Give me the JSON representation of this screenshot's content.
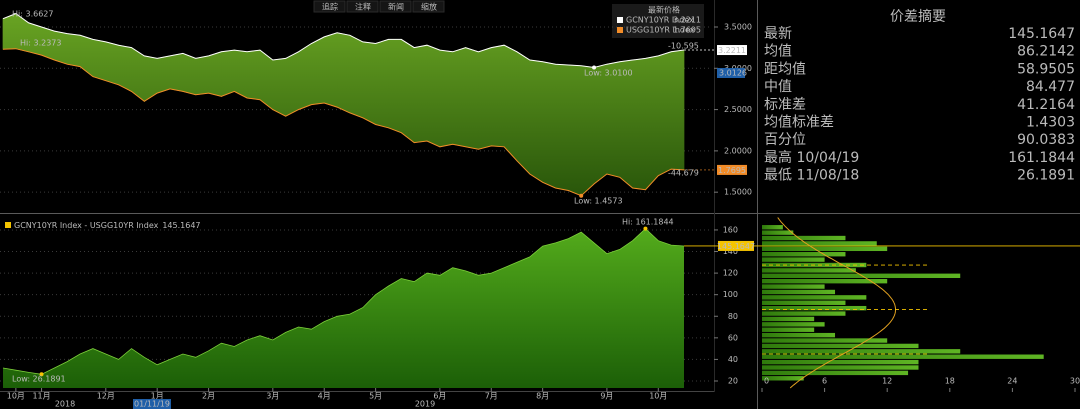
{
  "toolbar": [
    "追踪",
    "注释",
    "新闻",
    "缩放"
  ],
  "chart_data": [
    {
      "type": "band",
      "legend_title": "最新价格",
      "series": [
        {
          "name": "GCNY10YR Index",
          "color": "#ffffff",
          "values": [
            3.6,
            3.6627,
            3.55,
            3.5,
            3.45,
            3.42,
            3.4,
            3.35,
            3.32,
            3.28,
            3.25,
            3.15,
            3.12,
            3.15,
            3.18,
            3.12,
            3.15,
            3.2,
            3.22,
            3.2,
            3.22,
            3.1,
            3.12,
            3.2,
            3.3,
            3.38,
            3.43,
            3.4,
            3.32,
            3.3,
            3.35,
            3.35,
            3.25,
            3.28,
            3.22,
            3.2,
            3.25,
            3.2,
            3.25,
            3.28,
            3.2,
            3.1,
            3.08,
            3.05,
            3.04,
            3.03,
            3.01,
            3.05,
            3.08,
            3.1,
            3.12,
            3.15,
            3.2,
            3.2211
          ]
        },
        {
          "name": "USGG10YR Index",
          "color": "#f28c28",
          "values": [
            3.23,
            3.2373,
            3.2,
            3.16,
            3.1,
            3.05,
            3.02,
            2.9,
            2.85,
            2.8,
            2.72,
            2.6,
            2.7,
            2.75,
            2.72,
            2.68,
            2.7,
            2.66,
            2.72,
            2.64,
            2.62,
            2.5,
            2.42,
            2.5,
            2.56,
            2.58,
            2.53,
            2.46,
            2.4,
            2.32,
            2.28,
            2.22,
            2.1,
            2.12,
            2.05,
            2.08,
            2.05,
            2.02,
            2.06,
            2.05,
            1.88,
            1.72,
            1.62,
            1.55,
            1.52,
            1.4573,
            1.6,
            1.72,
            1.68,
            1.55,
            1.53,
            1.7,
            1.78,
            1.7695
          ]
        }
      ],
      "fill_color": "#4e8f17",
      "ylim": [
        1.26,
        3.73
      ],
      "yticks": [
        {
          "value": 1.5,
          "label": "1.5000"
        },
        {
          "value": 2.0,
          "label": "2.0000"
        },
        {
          "value": 2.5,
          "label": "2.5000"
        },
        {
          "value": 3.0,
          "label": "3.0000"
        },
        {
          "value": 3.5,
          "label": "3.5000"
        }
      ],
      "grid": true,
      "annotations": [
        {
          "text": "Hi: 3.6627",
          "color": "#ffffff"
        },
        {
          "text": "Hi: 3.2373",
          "color": "#f28c28"
        },
        {
          "text": "Low: 3.0100",
          "color": "#ffffff"
        },
        {
          "text": "Low: 1.4573",
          "color": "#f28c28"
        },
        {
          "text": "-10.595",
          "color": "#ffffff"
        },
        {
          "text": "-44.679",
          "color": "#f28c28"
        },
        {
          "text": "3.0126",
          "color": "#ffffff"
        }
      ]
    },
    {
      "type": "area",
      "series": [
        {
          "name": "GCNY10YR Index - USGG10YR Index",
          "color": "#f5c400",
          "values": [
            32,
            30,
            28,
            26.1891,
            32,
            38,
            45,
            50,
            45,
            40,
            50,
            42,
            35,
            40,
            45,
            42,
            48,
            55,
            52,
            58,
            62,
            58,
            65,
            70,
            68,
            75,
            80,
            82,
            88,
            100,
            108,
            115,
            112,
            120,
            118,
            125,
            122,
            118,
            120,
            125,
            130,
            135,
            145,
            148,
            152,
            158,
            148,
            138,
            142,
            150,
            161.1844,
            150,
            146,
            145.1647
          ]
        }
      ],
      "fill_color": "#3f8a12",
      "categories": [
        null,
        "10月",
        null,
        "11月",
        null,
        null,
        null,
        null,
        "12月",
        null,
        null,
        null,
        "1月",
        null,
        null,
        null,
        "2月",
        null,
        null,
        null,
        null,
        "3月",
        null,
        null,
        null,
        "4月",
        null,
        null,
        null,
        "5月",
        null,
        null,
        null,
        null,
        "6月",
        null,
        null,
        null,
        "7月",
        null,
        null,
        null,
        "8月",
        null,
        null,
        null,
        null,
        "9月",
        null,
        null,
        null,
        "10月",
        null,
        null
      ],
      "ylim": [
        13.5,
        172
      ],
      "yticks": [
        20,
        40,
        60,
        80,
        100,
        120,
        140,
        160
      ],
      "grid": true,
      "year_labels": [
        "2018",
        "2019"
      ],
      "cursor_date": "01/11/19",
      "annotations": [
        {
          "text": "Hi: 161.1844",
          "color": "#f5c400"
        },
        {
          "text": "Low: 26.1891",
          "color": "#f5c400"
        }
      ]
    },
    {
      "type": "histogram",
      "orientation": "horizontal",
      "bins": [
        20,
        25,
        30,
        35,
        40,
        45,
        50,
        55,
        60,
        65,
        70,
        75,
        80,
        85,
        90,
        95,
        100,
        105,
        110,
        115,
        120,
        125,
        130,
        135,
        140,
        145,
        150,
        155,
        160,
        165
      ],
      "values": [
        4,
        14,
        15,
        15,
        27,
        19,
        15,
        12,
        7,
        5,
        6,
        5,
        8,
        10,
        8,
        10,
        7,
        6,
        12,
        19,
        9,
        10,
        6,
        8,
        12,
        11,
        8,
        3,
        2
      ],
      "color": "#3f8a12",
      "curve_color": "#e0a020",
      "xlim": [
        0,
        30
      ],
      "xticks": [
        0,
        6,
        12,
        18,
        24,
        30
      ],
      "ylim": [
        13.5,
        172
      ]
    }
  ],
  "summary": {
    "title": "价差摘要",
    "rows": [
      {
        "label": "最新",
        "value": 145.1647,
        "color": "#ffffff"
      },
      {
        "label": "均值",
        "value": 86.2142,
        "color": "#ffffff"
      },
      {
        "label": "距均值",
        "value": 58.9505,
        "color": "#ffffff"
      },
      {
        "label": "中值",
        "value": 84.477,
        "color": "#f28c28"
      },
      {
        "label": "标准差",
        "value": 41.2164,
        "color": "#f28c28"
      },
      {
        "label": "均值标准差",
        "value": 1.4303,
        "color": "#f28c28"
      },
      {
        "label": "百分位",
        "value": 90.0383,
        "color": "#f28c28"
      },
      {
        "label": "最高 10/04/19",
        "value": 161.1844,
        "color": "#f28c28"
      },
      {
        "label": "最低 11/08/18",
        "value": 26.1891,
        "color": "#f28c28"
      }
    ]
  }
}
